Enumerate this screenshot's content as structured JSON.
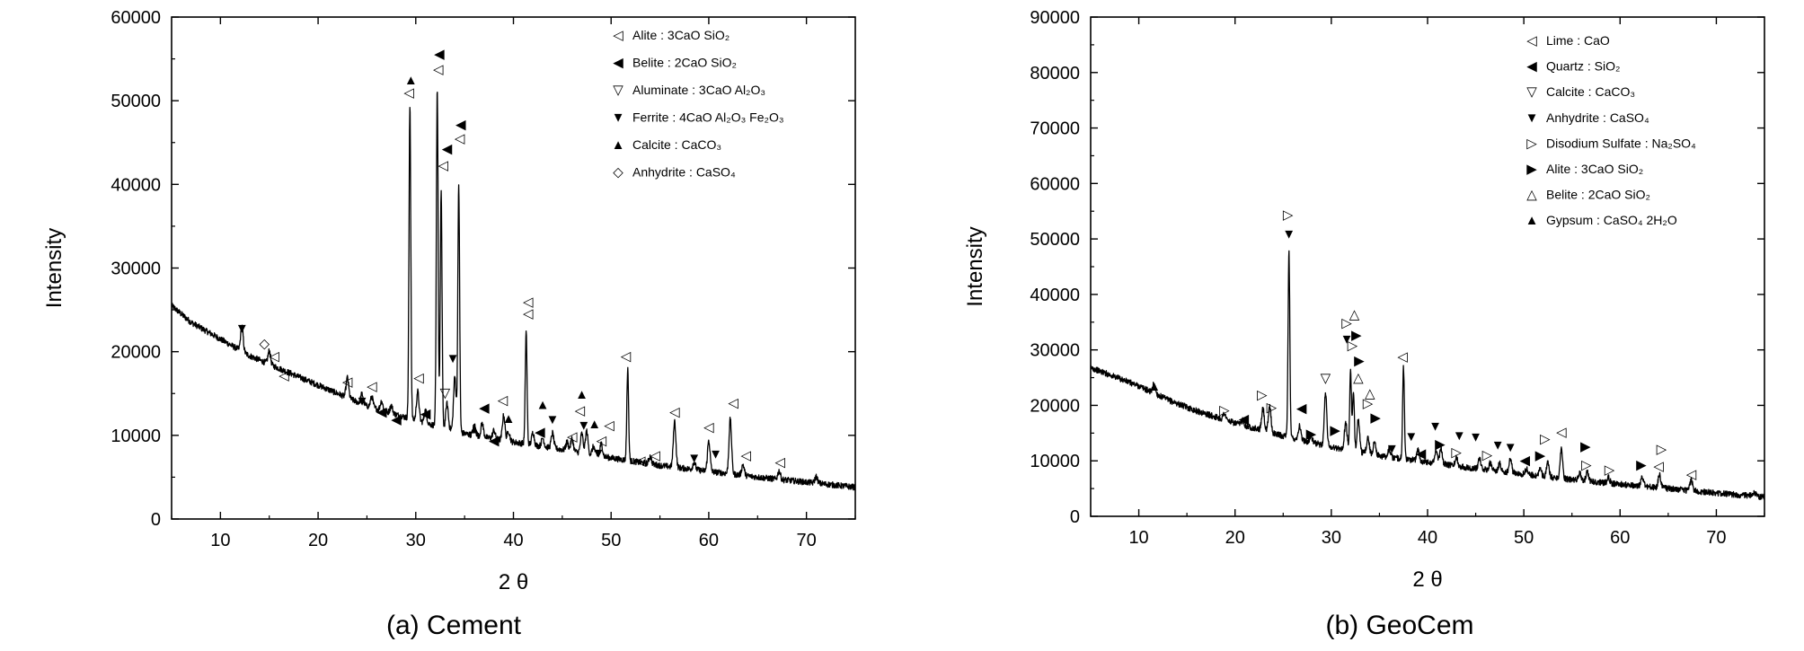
{
  "chart_data": [
    {
      "type": "line",
      "caption": "(a) Cement",
      "xlabel": "2 θ",
      "ylabel": "Intensity",
      "xlim": [
        5,
        75
      ],
      "ylim": [
        0,
        60000
      ],
      "xticks": [
        10,
        20,
        30,
        40,
        50,
        60,
        70
      ],
      "yticks": [
        0,
        10000,
        20000,
        30000,
        40000,
        50000,
        60000
      ],
      "legend": [
        {
          "symbol": "◁",
          "text": "Alite : 3CaO SiO₂"
        },
        {
          "symbol": "◀",
          "text": "Belite : 2CaO SiO₂"
        },
        {
          "symbol": "▽",
          "text": "Aluminate : 3CaO Al₂O₃"
        },
        {
          "symbol": "▼",
          "text": "Ferrite : 4CaO Al₂O₃ Fe₂O₃"
        },
        {
          "symbol": "▲",
          "text": "Calcite : CaCO₃"
        },
        {
          "symbol": "◇",
          "text": "Anhydrite : CaSO₄"
        }
      ],
      "background": [
        [
          5,
          25500
        ],
        [
          7,
          23500
        ],
        [
          10,
          21500
        ],
        [
          13,
          19500
        ],
        [
          16,
          18000
        ],
        [
          20,
          16000
        ],
        [
          25,
          13500
        ],
        [
          30,
          11800
        ],
        [
          35,
          10200
        ],
        [
          40,
          9200
        ],
        [
          45,
          8300
        ],
        [
          50,
          7300
        ],
        [
          55,
          6400
        ],
        [
          60,
          5700
        ],
        [
          65,
          5000
        ],
        [
          70,
          4400
        ],
        [
          75,
          3800
        ]
      ],
      "peaks": [
        {
          "x": 12.2,
          "h": 3000
        },
        {
          "x": 15.0,
          "h": 1600
        },
        {
          "x": 23.0,
          "h": 2400
        },
        {
          "x": 24.5,
          "h": 1200
        },
        {
          "x": 25.5,
          "h": 1300
        },
        {
          "x": 26.5,
          "h": 1100
        },
        {
          "x": 27.5,
          "h": 900
        },
        {
          "x": 29.4,
          "h": 37500
        },
        {
          "x": 30.2,
          "h": 3500
        },
        {
          "x": 31.0,
          "h": 1500
        },
        {
          "x": 32.2,
          "h": 40500
        },
        {
          "x": 32.6,
          "h": 28000
        },
        {
          "x": 33.2,
          "h": 3000
        },
        {
          "x": 34.0,
          "h": 6500
        },
        {
          "x": 34.4,
          "h": 29500
        },
        {
          "x": 36.0,
          "h": 1200
        },
        {
          "x": 36.8,
          "h": 1600
        },
        {
          "x": 38.0,
          "h": 1000
        },
        {
          "x": 39.0,
          "h": 3000
        },
        {
          "x": 39.5,
          "h": 1200
        },
        {
          "x": 41.3,
          "h": 13500
        },
        {
          "x": 42.0,
          "h": 1500
        },
        {
          "x": 43.0,
          "h": 1000
        },
        {
          "x": 44.0,
          "h": 1800
        },
        {
          "x": 45.5,
          "h": 1000
        },
        {
          "x": 46.0,
          "h": 1500
        },
        {
          "x": 47.0,
          "h": 2300
        },
        {
          "x": 47.5,
          "h": 2700
        },
        {
          "x": 48.2,
          "h": 1000
        },
        {
          "x": 49.0,
          "h": 1500
        },
        {
          "x": 51.7,
          "h": 11000
        },
        {
          "x": 54.0,
          "h": 900
        },
        {
          "x": 56.5,
          "h": 5500
        },
        {
          "x": 58.5,
          "h": 900
        },
        {
          "x": 60.0,
          "h": 3700
        },
        {
          "x": 62.2,
          "h": 6500
        },
        {
          "x": 63.5,
          "h": 1300
        },
        {
          "x": 67.2,
          "h": 1000
        },
        {
          "x": 71.0,
          "h": 800
        }
      ],
      "markers": [
        {
          "x": 12.2,
          "y": 22800,
          "s": "▼"
        },
        {
          "x": 14.5,
          "y": 21000,
          "s": "◇"
        },
        {
          "x": 15.5,
          "y": 19500,
          "s": "◁"
        },
        {
          "x": 16.5,
          "y": 17200,
          "s": "◁"
        },
        {
          "x": 23.0,
          "y": 16400,
          "s": "◁"
        },
        {
          "x": 24.5,
          "y": 14100,
          "s": "▼"
        },
        {
          "x": 25.5,
          "y": 15900,
          "s": "◁"
        },
        {
          "x": 26.5,
          "y": 12800,
          "s": "◀"
        },
        {
          "x": 28.0,
          "y": 11900,
          "s": "◀"
        },
        {
          "x": 29.5,
          "y": 52500,
          "s": "▲"
        },
        {
          "x": 29.3,
          "y": 51000,
          "s": "◁"
        },
        {
          "x": 30.3,
          "y": 16900,
          "s": "◁"
        },
        {
          "x": 31.0,
          "y": 12600,
          "s": "◀"
        },
        {
          "x": 32.4,
          "y": 55600,
          "s": "◀"
        },
        {
          "x": 32.3,
          "y": 53800,
          "s": "◁"
        },
        {
          "x": 32.8,
          "y": 42300,
          "s": "◁"
        },
        {
          "x": 33.2,
          "y": 44300,
          "s": "◀"
        },
        {
          "x": 33.0,
          "y": 15100,
          "s": "▽"
        },
        {
          "x": 33.8,
          "y": 19200,
          "s": "▼"
        },
        {
          "x": 34.5,
          "y": 45500,
          "s": "◁"
        },
        {
          "x": 34.6,
          "y": 47200,
          "s": "◀"
        },
        {
          "x": 36.0,
          "y": 10800,
          "s": "▲"
        },
        {
          "x": 37.0,
          "y": 13300,
          "s": "◀"
        },
        {
          "x": 38.0,
          "y": 9400,
          "s": "◀"
        },
        {
          "x": 38.9,
          "y": 14200,
          "s": "◁"
        },
        {
          "x": 39.5,
          "y": 12000,
          "s": "▲"
        },
        {
          "x": 41.5,
          "y": 26000,
          "s": "◁"
        },
        {
          "x": 41.5,
          "y": 24600,
          "s": "◁"
        },
        {
          "x": 42.7,
          "y": 10400,
          "s": "◀"
        },
        {
          "x": 43.0,
          "y": 13700,
          "s": "▲"
        },
        {
          "x": 44.0,
          "y": 11900,
          "s": "▼"
        },
        {
          "x": 46.0,
          "y": 9900,
          "s": "◁"
        },
        {
          "x": 47.0,
          "y": 14900,
          "s": "▲"
        },
        {
          "x": 46.8,
          "y": 13000,
          "s": "◁"
        },
        {
          "x": 47.2,
          "y": 11200,
          "s": "▼"
        },
        {
          "x": 48.3,
          "y": 11400,
          "s": "▲"
        },
        {
          "x": 49.0,
          "y": 9400,
          "s": "◁"
        },
        {
          "x": 48.7,
          "y": 7900,
          "s": "▼"
        },
        {
          "x": 49.8,
          "y": 11200,
          "s": "◁"
        },
        {
          "x": 51.5,
          "y": 19500,
          "s": "◁"
        },
        {
          "x": 53.0,
          "y": 7000,
          "s": "◁"
        },
        {
          "x": 54.5,
          "y": 7600,
          "s": "◁"
        },
        {
          "x": 56.5,
          "y": 12800,
          "s": "◁"
        },
        {
          "x": 58.5,
          "y": 7300,
          "s": "▼"
        },
        {
          "x": 60.0,
          "y": 11000,
          "s": "◁"
        },
        {
          "x": 60.7,
          "y": 7800,
          "s": "▼"
        },
        {
          "x": 62.5,
          "y": 13900,
          "s": "◁"
        },
        {
          "x": 63.8,
          "y": 7600,
          "s": "◁"
        },
        {
          "x": 67.3,
          "y": 6800,
          "s": "◁"
        }
      ]
    },
    {
      "type": "line",
      "caption": "(b) GeoCem",
      "xlabel": "2 θ",
      "ylabel": "Intensity",
      "xlim": [
        5,
        75
      ],
      "ylim": [
        0,
        90000
      ],
      "xticks": [
        10,
        20,
        30,
        40,
        50,
        60,
        70
      ],
      "yticks": [
        0,
        10000,
        20000,
        30000,
        40000,
        50000,
        60000,
        70000,
        80000,
        90000
      ],
      "legend": [
        {
          "symbol": "◁",
          "text": "Lime : CaO"
        },
        {
          "symbol": "◀",
          "text": "Quartz : SiO₂"
        },
        {
          "symbol": "▽",
          "text": "Calcite : CaCO₃"
        },
        {
          "symbol": "▼",
          "text": "Anhydrite : CaSO₄"
        },
        {
          "symbol": "▷",
          "text": "Disodium Sulfate : Na₂SO₄"
        },
        {
          "symbol": "▶",
          "text": "Alite : 3CaO SiO₂"
        },
        {
          "symbol": "△",
          "text": "Belite : 2CaO SiO₂"
        },
        {
          "symbol": "▲",
          "text": "Gypsum : CaSO₄ 2H₂O"
        }
      ],
      "background": [
        [
          5,
          26800
        ],
        [
          7,
          25500
        ],
        [
          10,
          23500
        ],
        [
          13,
          21000
        ],
        [
          16,
          19000
        ],
        [
          20,
          16800
        ],
        [
          25,
          14500
        ],
        [
          30,
          12500
        ],
        [
          35,
          10900
        ],
        [
          40,
          9800
        ],
        [
          45,
          8600
        ],
        [
          50,
          7600
        ],
        [
          55,
          6600
        ],
        [
          60,
          5800
        ],
        [
          65,
          5000
        ],
        [
          70,
          4200
        ],
        [
          75,
          3500
        ]
      ],
      "peaks": [
        {
          "x": 11.6,
          "h": 1800
        },
        {
          "x": 18.9,
          "h": 1200
        },
        {
          "x": 20.8,
          "h": 1000
        },
        {
          "x": 22.9,
          "h": 4000
        },
        {
          "x": 23.6,
          "h": 4800
        },
        {
          "x": 25.6,
          "h": 33500
        },
        {
          "x": 26.7,
          "h": 2500
        },
        {
          "x": 27.9,
          "h": 1000
        },
        {
          "x": 29.4,
          "h": 9500
        },
        {
          "x": 31.5,
          "h": 5000
        },
        {
          "x": 32.0,
          "h": 14500
        },
        {
          "x": 32.3,
          "h": 10500
        },
        {
          "x": 32.8,
          "h": 6000
        },
        {
          "x": 33.8,
          "h": 3000
        },
        {
          "x": 34.5,
          "h": 2500
        },
        {
          "x": 36.0,
          "h": 1500
        },
        {
          "x": 37.5,
          "h": 16500
        },
        {
          "x": 39.0,
          "h": 2000
        },
        {
          "x": 40.9,
          "h": 2500
        },
        {
          "x": 41.4,
          "h": 2800
        },
        {
          "x": 43.0,
          "h": 1500
        },
        {
          "x": 45.4,
          "h": 2000
        },
        {
          "x": 46.5,
          "h": 1300
        },
        {
          "x": 47.5,
          "h": 1500
        },
        {
          "x": 48.6,
          "h": 2500
        },
        {
          "x": 50.3,
          "h": 1000
        },
        {
          "x": 51.7,
          "h": 1500
        },
        {
          "x": 52.5,
          "h": 2500
        },
        {
          "x": 53.9,
          "h": 5500
        },
        {
          "x": 55.8,
          "h": 1300
        },
        {
          "x": 56.6,
          "h": 1800
        },
        {
          "x": 58.8,
          "h": 1000
        },
        {
          "x": 62.3,
          "h": 1800
        },
        {
          "x": 64.1,
          "h": 2500
        },
        {
          "x": 67.4,
          "h": 2000
        },
        {
          "x": 74.0,
          "h": 600
        }
      ],
      "markers": [
        {
          "x": 11.6,
          "y": 23500,
          "s": "▲"
        },
        {
          "x": 18.9,
          "y": 19200,
          "s": "▷"
        },
        {
          "x": 20.9,
          "y": 17600,
          "s": "◀"
        },
        {
          "x": 22.8,
          "y": 21900,
          "s": "▷"
        },
        {
          "x": 23.8,
          "y": 19700,
          "s": "▷"
        },
        {
          "x": 25.5,
          "y": 54400,
          "s": "▷"
        },
        {
          "x": 25.6,
          "y": 50900,
          "s": "▼"
        },
        {
          "x": 26.9,
          "y": 19500,
          "s": "◀"
        },
        {
          "x": 27.9,
          "y": 14900,
          "s": "▶"
        },
        {
          "x": 29.4,
          "y": 24900,
          "s": "▽"
        },
        {
          "x": 30.4,
          "y": 15500,
          "s": "▶"
        },
        {
          "x": 31.6,
          "y": 34900,
          "s": "▷"
        },
        {
          "x": 31.6,
          "y": 32000,
          "s": "▼"
        },
        {
          "x": 32.4,
          "y": 36400,
          "s": "△"
        },
        {
          "x": 32.6,
          "y": 32700,
          "s": "▶"
        },
        {
          "x": 32.2,
          "y": 30800,
          "s": "▷"
        },
        {
          "x": 32.9,
          "y": 28100,
          "s": "▶"
        },
        {
          "x": 32.8,
          "y": 25000,
          "s": "△"
        },
        {
          "x": 34.0,
          "y": 22200,
          "s": "△"
        },
        {
          "x": 33.8,
          "y": 20400,
          "s": "▷"
        },
        {
          "x": 34.6,
          "y": 17800,
          "s": "▶"
        },
        {
          "x": 37.4,
          "y": 28800,
          "s": "◁"
        },
        {
          "x": 36.3,
          "y": 12200,
          "s": "▼"
        },
        {
          "x": 38.3,
          "y": 14400,
          "s": "▼"
        },
        {
          "x": 39.3,
          "y": 11300,
          "s": "◀"
        },
        {
          "x": 40.8,
          "y": 16300,
          "s": "▼"
        },
        {
          "x": 41.3,
          "y": 13000,
          "s": "▶"
        },
        {
          "x": 43.0,
          "y": 11600,
          "s": "▷"
        },
        {
          "x": 43.3,
          "y": 14600,
          "s": "▼"
        },
        {
          "x": 45.0,
          "y": 14300,
          "s": "▼"
        },
        {
          "x": 46.2,
          "y": 11100,
          "s": "▷"
        },
        {
          "x": 47.3,
          "y": 12900,
          "s": "▼"
        },
        {
          "x": 48.6,
          "y": 12500,
          "s": "▼"
        },
        {
          "x": 50.1,
          "y": 10100,
          "s": "◀"
        },
        {
          "x": 51.7,
          "y": 11000,
          "s": "▶"
        },
        {
          "x": 52.2,
          "y": 14000,
          "s": "▷"
        },
        {
          "x": 53.9,
          "y": 15200,
          "s": "◁"
        },
        {
          "x": 56.4,
          "y": 12600,
          "s": "▶"
        },
        {
          "x": 56.5,
          "y": 9300,
          "s": "▷"
        },
        {
          "x": 58.9,
          "y": 8400,
          "s": "▷"
        },
        {
          "x": 62.2,
          "y": 9300,
          "s": "▶"
        },
        {
          "x": 64.3,
          "y": 12100,
          "s": "▷"
        },
        {
          "x": 64.0,
          "y": 9100,
          "s": "◁"
        },
        {
          "x": 67.4,
          "y": 7600,
          "s": "◁"
        }
      ]
    }
  ]
}
